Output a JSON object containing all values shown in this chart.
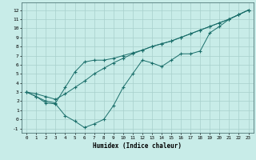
{
  "title": "",
  "xlabel": "Humidex (Indice chaleur)",
  "background_color": "#c8ece8",
  "grid_color": "#a8d0cc",
  "line_color": "#1a6e6a",
  "xlim": [
    -0.5,
    23.5
  ],
  "ylim": [
    -1.5,
    12.8
  ],
  "xticks": [
    0,
    1,
    2,
    3,
    4,
    5,
    6,
    7,
    8,
    9,
    10,
    11,
    12,
    13,
    14,
    15,
    16,
    17,
    18,
    19,
    20,
    21,
    22,
    23
  ],
  "yticks": [
    -1,
    0,
    1,
    2,
    3,
    4,
    5,
    6,
    7,
    8,
    9,
    10,
    11,
    12
  ],
  "line_straight_x": [
    0,
    1,
    2,
    3,
    4,
    5,
    6,
    7,
    8,
    9,
    10,
    11,
    12,
    13,
    14,
    15,
    16,
    17,
    18,
    19,
    20,
    21,
    22,
    23
  ],
  "line_straight_y": [
    3.0,
    2.8,
    2.5,
    2.2,
    2.8,
    3.5,
    4.2,
    5.0,
    5.6,
    6.2,
    6.7,
    7.2,
    7.6,
    8.0,
    8.3,
    8.6,
    9.0,
    9.4,
    9.8,
    10.2,
    10.6,
    11.0,
    11.5,
    12.0
  ],
  "line_dip_x": [
    0,
    1,
    2,
    3,
    4,
    5,
    6,
    7,
    8,
    9,
    10,
    11,
    12,
    13,
    14,
    15,
    16,
    17,
    18,
    19,
    20,
    21,
    22,
    23
  ],
  "line_dip_y": [
    3.0,
    2.5,
    1.8,
    1.7,
    0.4,
    -0.2,
    -0.9,
    -0.5,
    0.0,
    1.5,
    3.5,
    5.0,
    6.5,
    6.2,
    5.8,
    6.5,
    7.2,
    7.2,
    7.5,
    9.5,
    10.2,
    11.0,
    11.5,
    12.0
  ],
  "line_fan_x": [
    0,
    1,
    2,
    3,
    4,
    5,
    6,
    7,
    8,
    9,
    10,
    11,
    12,
    13,
    14,
    15,
    16,
    17,
    18,
    19,
    20,
    21,
    22,
    23
  ],
  "line_fan_y": [
    3.0,
    2.5,
    2.0,
    1.8,
    3.5,
    5.2,
    6.3,
    6.5,
    6.5,
    6.7,
    7.0,
    7.3,
    7.6,
    8.0,
    8.3,
    8.6,
    9.0,
    9.4,
    9.8,
    10.2,
    10.6,
    11.0,
    11.5,
    12.0
  ],
  "figsize": [
    3.2,
    2.0
  ],
  "dpi": 100
}
